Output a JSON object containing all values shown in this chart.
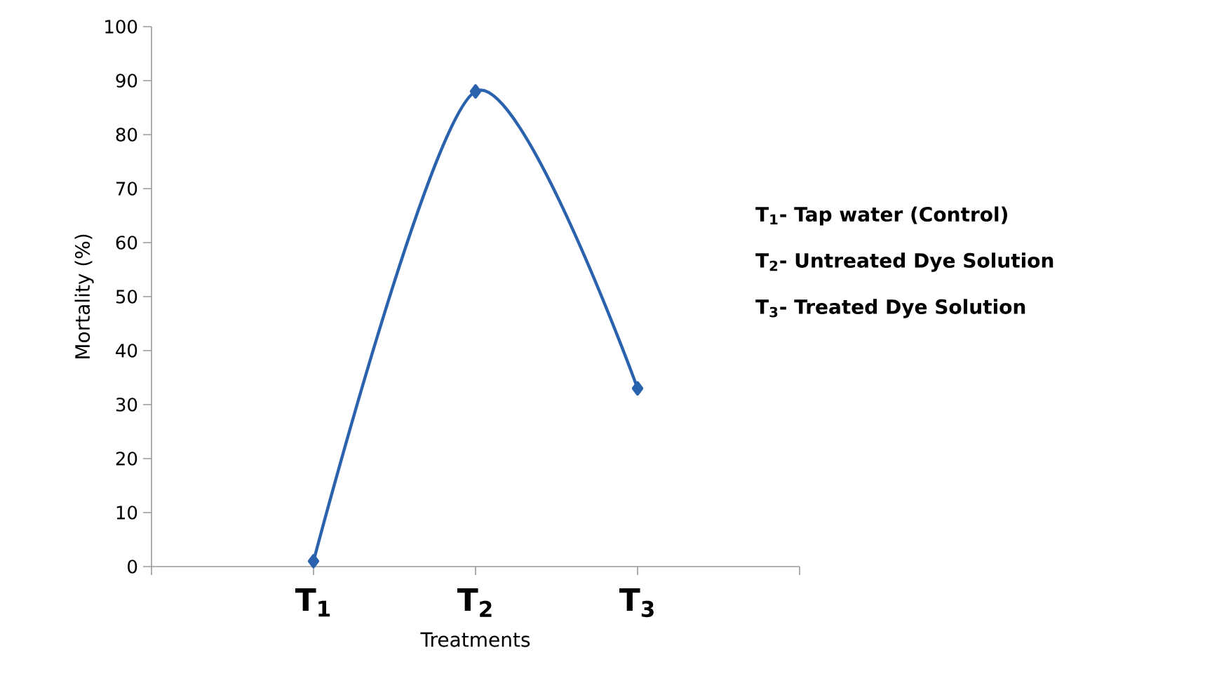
{
  "chart_data": {
    "type": "line",
    "xlabel": "Treatments",
    "ylabel": "Mortality (%)",
    "categories": [
      null,
      "T$_{1}$",
      "T$_{2}$",
      "T$_{3}$",
      null
    ],
    "series": [
      {
        "color": "#2b62ad",
        "values": [
          null,
          1,
          88,
          33,
          null
        ]
      }
    ],
    "ylim": [
      0,
      100
    ],
    "yticks": [
      0,
      10,
      20,
      30,
      40,
      50,
      60,
      70,
      80,
      90,
      100
    ],
    "marker": "diamond",
    "line_style": "solid",
    "grid": false,
    "annotations": [
      "T$_{1}$- Tap water (Control)",
      "T$_{2}$- Untreated Dye Solution",
      "T$_{3}$- Treated Dye Solution"
    ]
  }
}
